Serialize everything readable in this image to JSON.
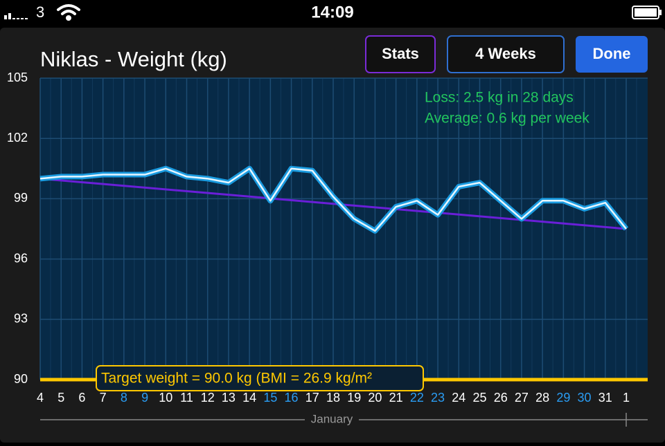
{
  "status_bar": {
    "carrier": "3",
    "time": "14:09"
  },
  "buttons": [
    "Stats",
    "4 Weeks",
    "Done"
  ],
  "chart_data": {
    "type": "line",
    "title": "Niklas - Weight (kg)",
    "categories": [
      "4",
      "5",
      "6",
      "7",
      "8",
      "9",
      "10",
      "11",
      "12",
      "13",
      "14",
      "15",
      "16",
      "17",
      "18",
      "19",
      "20",
      "21",
      "22",
      "23",
      "24",
      "25",
      "26",
      "27",
      "28",
      "29",
      "30",
      "31",
      "1"
    ],
    "label_colors": [
      "#ffffff",
      "#ffffff",
      "#ffffff",
      "#ffffff",
      "#2a9df4",
      "#2a9df4",
      "#ffffff",
      "#ffffff",
      "#ffffff",
      "#ffffff",
      "#ffffff",
      "#2a9df4",
      "#2a9df4",
      "#ffffff",
      "#ffffff",
      "#ffffff",
      "#ffffff",
      "#ffffff",
      "#2a9df4",
      "#2a9df4",
      "#ffffff",
      "#ffffff",
      "#ffffff",
      "#ffffff",
      "#ffffff",
      "#2a9df4",
      "#2a9df4",
      "#ffffff",
      "#ffffff"
    ],
    "series": [
      {
        "color": "#1a9be0",
        "values": [
          100.0,
          100.1,
          100.1,
          100.2,
          100.2,
          100.2,
          100.5,
          100.1,
          100.0,
          99.8,
          100.5,
          98.9,
          100.5,
          100.4,
          99.1,
          98.0,
          97.4,
          98.6,
          98.9,
          98.2,
          99.6,
          99.8,
          98.9,
          98.0,
          98.9,
          98.9,
          98.5,
          98.8,
          97.5
        ]
      }
    ],
    "trend": {
      "color": "#6a1fd8",
      "values": [
        100.0,
        97.5
      ]
    },
    "target": {
      "value": 90,
      "color": "#ffc800",
      "label": "Target weight = 90.0 kg (BMI = 26.9 kg/m²"
    },
    "annotations": [
      "Loss: 2.5 kg in 28 days",
      "Average: 0.6 kg per week"
    ],
    "annotation_color": "#22c55e",
    "x_label": "January",
    "ylim": [
      90,
      105
    ],
    "yticks": [
      90,
      93,
      96,
      99,
      102,
      105
    ],
    "grid": true
  }
}
